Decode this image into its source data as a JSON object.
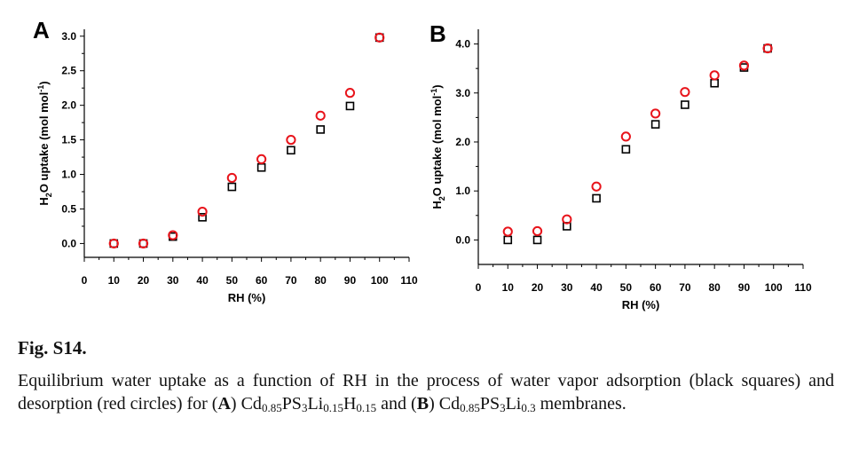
{
  "chart_data": [
    {
      "panel": "A",
      "type": "scatter",
      "xlabel": "RH (%)",
      "ylabel": {
        "pre": "H",
        "sub": "2",
        "mid": "O uptake (mol mol",
        "sup": "-1",
        "post": ")"
      },
      "xlim": [
        0,
        110
      ],
      "ylim": [
        -0.2,
        3.1
      ],
      "xticks": [
        0,
        10,
        20,
        30,
        40,
        50,
        60,
        70,
        80,
        90,
        100,
        110
      ],
      "yticks": [
        0.0,
        0.5,
        1.0,
        1.5,
        2.0,
        2.5,
        3.0
      ],
      "ytick_labels": [
        "0.0",
        "0.5",
        "1.0",
        "1.5",
        "2.0",
        "2.5",
        "3.0"
      ],
      "series": [
        {
          "name": "adsorption",
          "marker": "square",
          "color": "#000000",
          "x": [
            10,
            20,
            30,
            40,
            50,
            60,
            70,
            80,
            90,
            100
          ],
          "y": [
            0.0,
            0.0,
            0.1,
            0.38,
            0.82,
            1.1,
            1.35,
            1.65,
            1.99,
            2.98
          ]
        },
        {
          "name": "desorption",
          "marker": "circle",
          "color": "#e8141b",
          "x": [
            10,
            20,
            30,
            40,
            50,
            60,
            70,
            80,
            90,
            100
          ],
          "y": [
            0.0,
            0.0,
            0.12,
            0.46,
            0.95,
            1.22,
            1.5,
            1.85,
            2.18,
            2.98
          ]
        }
      ]
    },
    {
      "panel": "B",
      "type": "scatter",
      "xlabel": "RH (%)",
      "ylabel": {
        "pre": "H",
        "sub": "2",
        "mid": "O uptake (mol mol",
        "sup": "-1",
        "post": ")"
      },
      "xlim": [
        0,
        110
      ],
      "ylim": [
        -0.5,
        4.3
      ],
      "xticks": [
        0,
        10,
        20,
        30,
        40,
        50,
        60,
        70,
        80,
        90,
        100,
        110
      ],
      "yticks": [
        0.0,
        1.0,
        2.0,
        3.0,
        4.0
      ],
      "ytick_labels": [
        "0.0",
        "1.0",
        "2.0",
        "3.0",
        "4.0"
      ],
      "series": [
        {
          "name": "adsorption",
          "marker": "square",
          "color": "#000000",
          "x": [
            10,
            20,
            30,
            40,
            50,
            60,
            70,
            80,
            90,
            98
          ],
          "y": [
            0.0,
            0.0,
            0.28,
            0.85,
            1.85,
            2.36,
            2.76,
            3.2,
            3.52,
            3.91
          ]
        },
        {
          "name": "desorption",
          "marker": "circle",
          "color": "#e8141b",
          "x": [
            10,
            20,
            30,
            40,
            50,
            60,
            70,
            80,
            90,
            98
          ],
          "y": [
            0.17,
            0.18,
            0.42,
            1.09,
            2.11,
            2.58,
            3.02,
            3.36,
            3.56,
            3.91
          ]
        }
      ]
    }
  ],
  "caption": {
    "label": "Fig. S14.",
    "text_start": "Equilibrium water uptake as a function of RH in the process of water vapor adsorption (black squares) and desorption (red circles) for (",
    "mark_a": "A",
    "text_mid_a": ") ",
    "formula_a": [
      {
        "t": "Cd"
      },
      {
        "s": "0.85"
      },
      {
        "t": "PS"
      },
      {
        "s": "3"
      },
      {
        "t": "Li"
      },
      {
        "s": "0.15"
      },
      {
        "t": "H"
      },
      {
        "s": "0.15"
      }
    ],
    "text_and": " and (",
    "mark_b": "B",
    "text_mid_b": ") ",
    "formula_b": [
      {
        "t": "Cd"
      },
      {
        "s": "0.85"
      },
      {
        "t": "PS"
      },
      {
        "s": "3"
      },
      {
        "t": "Li"
      },
      {
        "s": "0.3"
      }
    ],
    "text_end": " membranes."
  }
}
